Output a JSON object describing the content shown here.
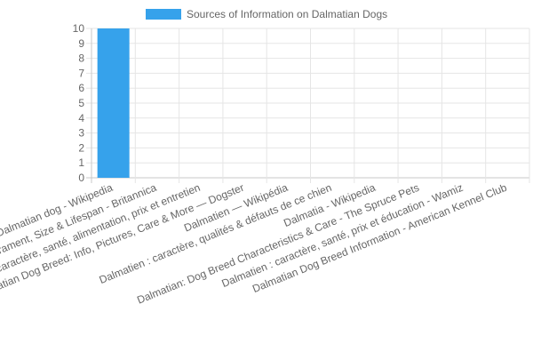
{
  "chart_data": {
    "type": "bar",
    "legend": {
      "label": "Sources of Information on Dalmatian Dogs",
      "position": "top",
      "color": "#36a2eb"
    },
    "categories": [
      "Dalmatian dog - Wikipedia",
      "Dalmatian | Temperament, Size & Lifespan - Britannica",
      "Dalmatien : caractère, santé, alimentation, prix et entretien",
      "Dalmatian Dog Breed: Info, Pictures, Care & More — Dogster",
      "Dalmatien — Wikipédia",
      "Dalmatien : caractère, qualités & défauts de ce chien",
      "Dalmatia - Wikipedia",
      "Dalmatian: Dog Breed Characteristics & Care - The Spruce Pets",
      "Dalmatien : caractère, santé, prix et éducation - Wamiz",
      "Dalmatian Dog Breed Information - American Kennel Club"
    ],
    "series": [
      {
        "name": "Sources of Information on Dalmatian Dogs",
        "values": [
          10,
          0,
          0,
          0,
          0,
          0,
          0,
          0,
          0,
          0
        ]
      }
    ],
    "ylim": [
      0,
      10
    ],
    "yticks": [
      "0",
      "1",
      "2",
      "3",
      "4",
      "5",
      "6",
      "7",
      "8",
      "9",
      "10"
    ],
    "grid": true,
    "colors": {
      "bar": "#36a2eb",
      "grid": "#e5e5e5",
      "axis": "#c8c8c8",
      "text": "#666666"
    }
  }
}
